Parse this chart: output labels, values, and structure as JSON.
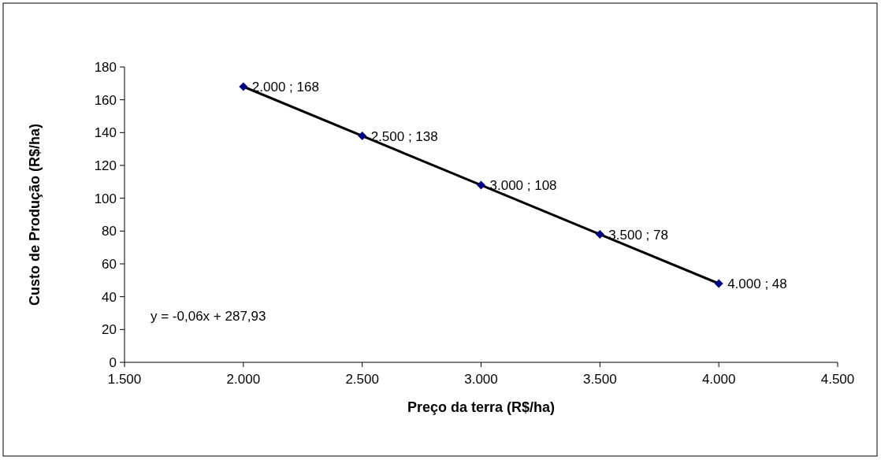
{
  "chart_data": {
    "type": "scatter",
    "xlabel": "Preço da terra (R$/ha)",
    "ylabel": "Custo de Produção (R$/ha)",
    "xlim": [
      1500,
      4500
    ],
    "ylim": [
      0,
      180
    ],
    "xticks": [
      {
        "value": 1500,
        "label": "1.500"
      },
      {
        "value": 2000,
        "label": "2.000"
      },
      {
        "value": 2500,
        "label": "2.500"
      },
      {
        "value": 3000,
        "label": "3.000"
      },
      {
        "value": 3500,
        "label": "3.500"
      },
      {
        "value": 4000,
        "label": "4.000"
      },
      {
        "value": 4500,
        "label": "4.500"
      }
    ],
    "yticks": [
      0,
      20,
      40,
      60,
      80,
      100,
      120,
      140,
      160,
      180
    ],
    "grid": false,
    "series": [
      {
        "type": "line",
        "color": "#000000",
        "marker": "none",
        "line_style": "solid",
        "x": [
          2000,
          4000
        ],
        "values": [
          168,
          48
        ]
      },
      {
        "type": "scatter",
        "color": "#000080",
        "marker": "diamond",
        "x": [
          2000,
          2500,
          3000,
          3500,
          4000
        ],
        "values": [
          168,
          138,
          108,
          78,
          48
        ],
        "value_labels": [
          "2.000 ; 168",
          "2.500 ; 138",
          "3.000 ; 108",
          "3.500 ; 78",
          "4.000 ; 48"
        ]
      }
    ],
    "annotations": [
      "y = -0,06x + 287,93"
    ]
  }
}
